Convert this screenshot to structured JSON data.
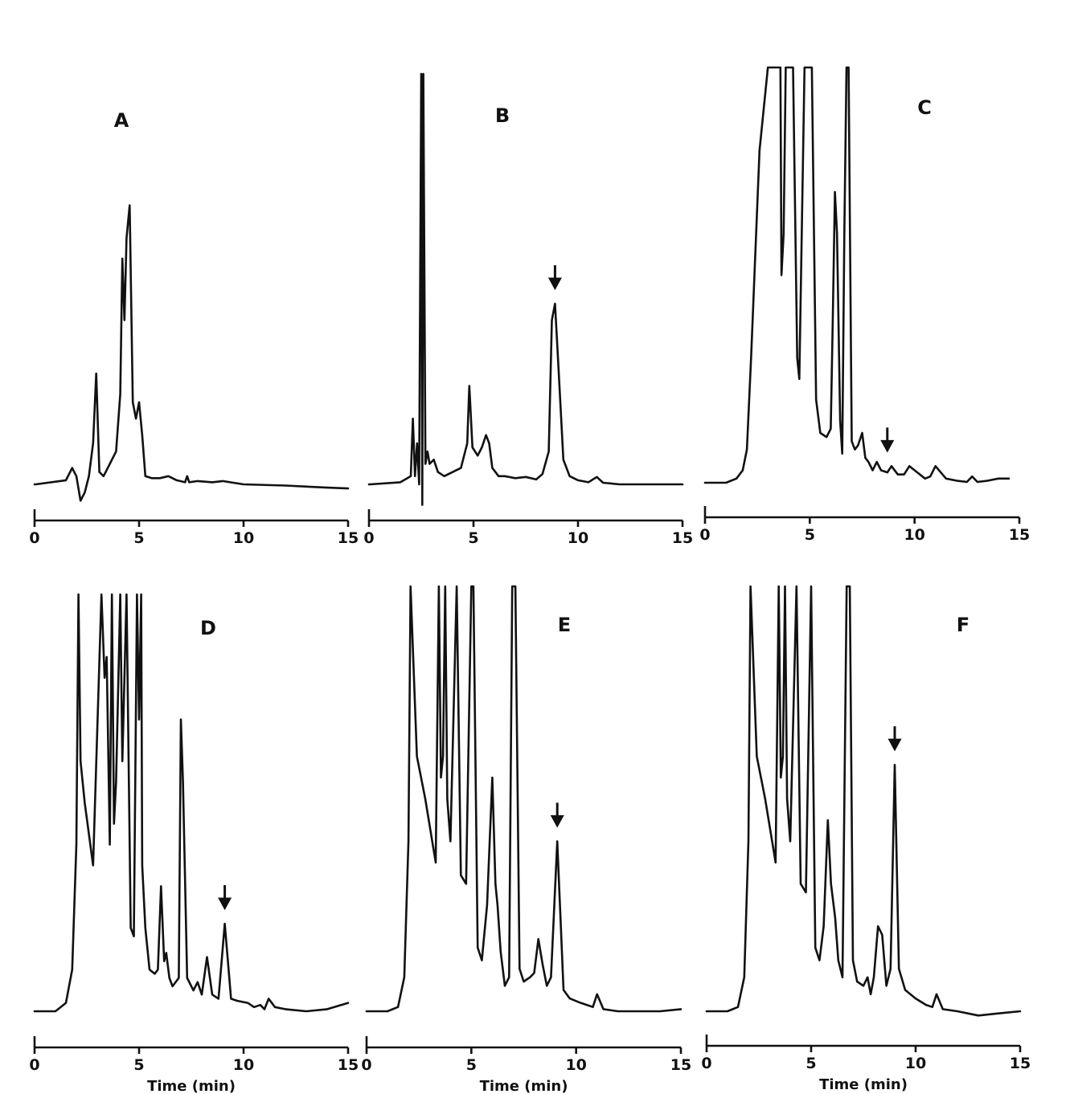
{
  "chart_data": [
    {
      "type": "line",
      "panel_label": "A",
      "xlabel": "",
      "xlim": [
        0,
        15
      ],
      "x_ticks": [
        0,
        5,
        10,
        15
      ],
      "x_tick_labels": [
        "0",
        "5",
        "10",
        "15"
      ],
      "ylim": [
        0,
        100
      ],
      "arrow_at": null,
      "series": [
        {
          "x": [
            0,
            0.05,
            1.5,
            1.8,
            2.0,
            2.2,
            2.4,
            2.6,
            2.8,
            2.95,
            3.1,
            3.3,
            3.6,
            3.9,
            4.1,
            4.2,
            4.3,
            4.4,
            4.55,
            4.7,
            4.85,
            5.0,
            5.15,
            5.3,
            5.6,
            6.0,
            6.4,
            6.8,
            7.2,
            7.3,
            7.4,
            7.8,
            8.5,
            9.0,
            10,
            12,
            14,
            15
          ],
          "y": [
            0,
            0,
            1,
            4,
            2,
            -4,
            -2,
            2,
            10,
            27,
            3,
            2,
            5,
            8,
            22,
            55,
            40,
            60,
            68,
            20,
            16,
            20,
            12,
            2,
            1.5,
            1.5,
            2,
            1,
            0.5,
            2,
            0.5,
            0.8,
            0.5,
            0.8,
            0,
            -0.3,
            -0.8,
            -1
          ]
        }
      ]
    },
    {
      "type": "line",
      "panel_label": "B",
      "xlabel": "",
      "xlim": [
        0,
        15
      ],
      "x_ticks": [
        0,
        5,
        10,
        15
      ],
      "x_tick_labels": [
        "0",
        "5",
        "10",
        "15"
      ],
      "ylim": [
        0,
        100
      ],
      "arrow_at": 8.9,
      "series": [
        {
          "x": [
            0,
            0.05,
            1.5,
            2.0,
            2.1,
            2.2,
            2.3,
            2.4,
            2.5,
            2.55,
            2.6,
            2.7,
            2.8,
            2.9,
            3.1,
            3.3,
            3.6,
            4.0,
            4.4,
            4.7,
            4.8,
            4.95,
            5.2,
            5.4,
            5.6,
            5.75,
            5.9,
            6.2,
            6.5,
            7.0,
            7.5,
            8.0,
            8.3,
            8.6,
            8.75,
            8.9,
            9.05,
            9.3,
            9.6,
            10.0,
            10.5,
            10.9,
            11.2,
            12,
            13,
            14,
            15
          ],
          "y": [
            0,
            0,
            0.5,
            2,
            16,
            2,
            10,
            0,
            100,
            -5,
            100,
            5,
            8,
            5,
            6,
            3,
            2,
            3,
            4,
            10,
            24,
            9,
            7,
            9,
            12,
            10,
            4,
            2,
            2,
            1.5,
            1.8,
            1.2,
            2.5,
            8,
            40,
            44,
            30,
            6,
            2,
            1,
            0.5,
            1.8,
            0.4,
            0,
            0,
            0,
            0
          ]
        }
      ]
    },
    {
      "type": "line",
      "panel_label": "C",
      "xlabel": "",
      "xlim": [
        0,
        15
      ],
      "x_ticks": [
        0,
        5,
        10,
        15
      ],
      "x_tick_labels": [
        "0",
        "5",
        "10",
        "15"
      ],
      "ylim": [
        0,
        100
      ],
      "arrow_at": 8.7,
      "series": [
        {
          "x": [
            0,
            0.4,
            1.0,
            1.5,
            1.8,
            2.0,
            2.2,
            2.6,
            3.0,
            3.3,
            3.6,
            3.65,
            3.75,
            3.85,
            3.95,
            4.2,
            4.4,
            4.5,
            4.75,
            5.0,
            5.1,
            5.3,
            5.5,
            5.8,
            6.0,
            6.1,
            6.2,
            6.3,
            6.45,
            6.55,
            6.65,
            6.75,
            6.85,
            7.0,
            7.15,
            7.3,
            7.5,
            7.65,
            7.8,
            8.0,
            8.2,
            8.4,
            8.7,
            8.9,
            9.2,
            9.5,
            9.75,
            10.0,
            10.5,
            10.75,
            11.0,
            11.5,
            12,
            12.5,
            12.75,
            13.0,
            13.5,
            14,
            14.5
          ],
          "y": [
            0,
            0,
            0,
            1,
            3,
            8,
            30,
            80,
            100,
            100,
            100,
            50,
            60,
            100,
            100,
            100,
            30,
            25,
            100,
            100,
            100,
            20,
            12,
            11,
            13,
            40,
            70,
            60,
            15,
            7,
            60,
            100,
            100,
            10,
            8,
            9,
            12,
            6,
            5,
            3,
            5,
            3,
            2.5,
            4,
            2,
            2,
            4,
            3,
            1,
            1.5,
            4,
            1,
            0.5,
            0.2,
            1.5,
            0.2,
            0.5,
            1,
            1
          ]
        }
      ]
    },
    {
      "type": "line",
      "panel_label": "D",
      "xlabel": "Time (min)",
      "xlim": [
        0,
        15
      ],
      "x_ticks": [
        0,
        5,
        10,
        15
      ],
      "x_tick_labels": [
        "0",
        "5",
        "10",
        "15"
      ],
      "ylim": [
        0,
        100
      ],
      "arrow_at": 9.1,
      "series": [
        {
          "x": [
            0,
            1.0,
            1.5,
            1.8,
            2.0,
            2.1,
            2.2,
            2.4,
            2.8,
            3.2,
            3.35,
            3.45,
            3.6,
            3.7,
            3.8,
            3.9,
            4.1,
            4.2,
            4.4,
            4.6,
            4.75,
            4.9,
            5.0,
            5.1,
            5.15,
            5.3,
            5.5,
            5.75,
            5.9,
            6.05,
            6.2,
            6.3,
            6.45,
            6.6,
            6.9,
            7.0,
            7.1,
            7.3,
            7.6,
            7.8,
            8.0,
            8.25,
            8.5,
            8.8,
            9.1,
            9.4,
            9.7,
            10.2,
            10.5,
            10.8,
            11.0,
            11.2,
            11.5,
            12,
            13,
            14,
            15
          ],
          "y": [
            0,
            0,
            2,
            10,
            40,
            100,
            60,
            50,
            35,
            100,
            80,
            85,
            40,
            100,
            45,
            55,
            100,
            60,
            100,
            20,
            18,
            100,
            70,
            100,
            35,
            20,
            10,
            9,
            10,
            30,
            12,
            14,
            8,
            6,
            8,
            70,
            55,
            8,
            5,
            7,
            4,
            13,
            4,
            3,
            21,
            3,
            2.5,
            2,
            1,
            1.5,
            0.5,
            3,
            1,
            0.5,
            0,
            0.5,
            2
          ]
        }
      ]
    },
    {
      "type": "line",
      "panel_label": "E",
      "xlabel": "Time (min)",
      "xlim": [
        0,
        15
      ],
      "x_ticks": [
        0,
        5,
        10,
        15
      ],
      "x_tick_labels": [
        "0",
        "5",
        "10",
        "15"
      ],
      "ylim": [
        0,
        100
      ],
      "arrow_at": 9.1,
      "series": [
        {
          "x": [
            0,
            1.0,
            1.5,
            1.8,
            2.0,
            2.1,
            2.4,
            2.8,
            3.3,
            3.45,
            3.55,
            3.65,
            3.75,
            3.85,
            4.0,
            4.3,
            4.5,
            4.75,
            5.0,
            5.1,
            5.3,
            5.5,
            5.75,
            6.0,
            6.15,
            6.25,
            6.4,
            6.6,
            6.8,
            6.95,
            7.1,
            7.3,
            7.5,
            7.8,
            8.0,
            8.2,
            8.4,
            8.6,
            8.8,
            9.1,
            9.4,
            9.7,
            10.2,
            10.8,
            11.0,
            11.3,
            12,
            13,
            14,
            15
          ],
          "y": [
            0,
            0,
            1,
            8,
            40,
            100,
            60,
            50,
            35,
            100,
            55,
            60,
            100,
            50,
            40,
            100,
            32,
            30,
            100,
            100,
            15,
            12,
            25,
            55,
            30,
            25,
            14,
            6,
            8,
            100,
            100,
            10,
            7,
            8,
            9,
            17,
            11,
            6,
            8,
            40,
            5,
            3,
            2,
            1,
            4,
            0.5,
            0,
            0,
            0,
            0.5
          ]
        }
      ]
    },
    {
      "type": "line",
      "panel_label": "F",
      "xlabel": "Time (min)",
      "xlim": [
        0,
        15
      ],
      "x_ticks": [
        0,
        5,
        10,
        15
      ],
      "x_tick_labels": [
        "0",
        "5",
        "10",
        "15"
      ],
      "ylim": [
        0,
        100
      ],
      "arrow_at": 9.0,
      "series": [
        {
          "x": [
            0,
            1.0,
            1.5,
            1.8,
            2.0,
            2.1,
            2.4,
            2.8,
            3.3,
            3.45,
            3.55,
            3.65,
            3.75,
            3.85,
            4.0,
            4.3,
            4.5,
            4.75,
            5.0,
            5.2,
            5.4,
            5.6,
            5.8,
            5.95,
            6.15,
            6.3,
            6.5,
            6.7,
            6.85,
            7.0,
            7.2,
            7.5,
            7.7,
            7.85,
            8.0,
            8.2,
            8.4,
            8.6,
            8.8,
            9.0,
            9.2,
            9.5,
            10.0,
            10.5,
            10.8,
            11.0,
            11.3,
            12,
            13,
            14,
            15
          ],
          "y": [
            0,
            0,
            1,
            8,
            40,
            100,
            60,
            50,
            35,
            100,
            55,
            60,
            100,
            50,
            40,
            100,
            30,
            28,
            100,
            15,
            12,
            20,
            45,
            30,
            22,
            12,
            8,
            100,
            100,
            12,
            7,
            6,
            8,
            4,
            8,
            20,
            18,
            6,
            10,
            58,
            10,
            5,
            3,
            1.5,
            1,
            4,
            0.5,
            0,
            -1,
            -0.5,
            0
          ]
        }
      ]
    }
  ]
}
